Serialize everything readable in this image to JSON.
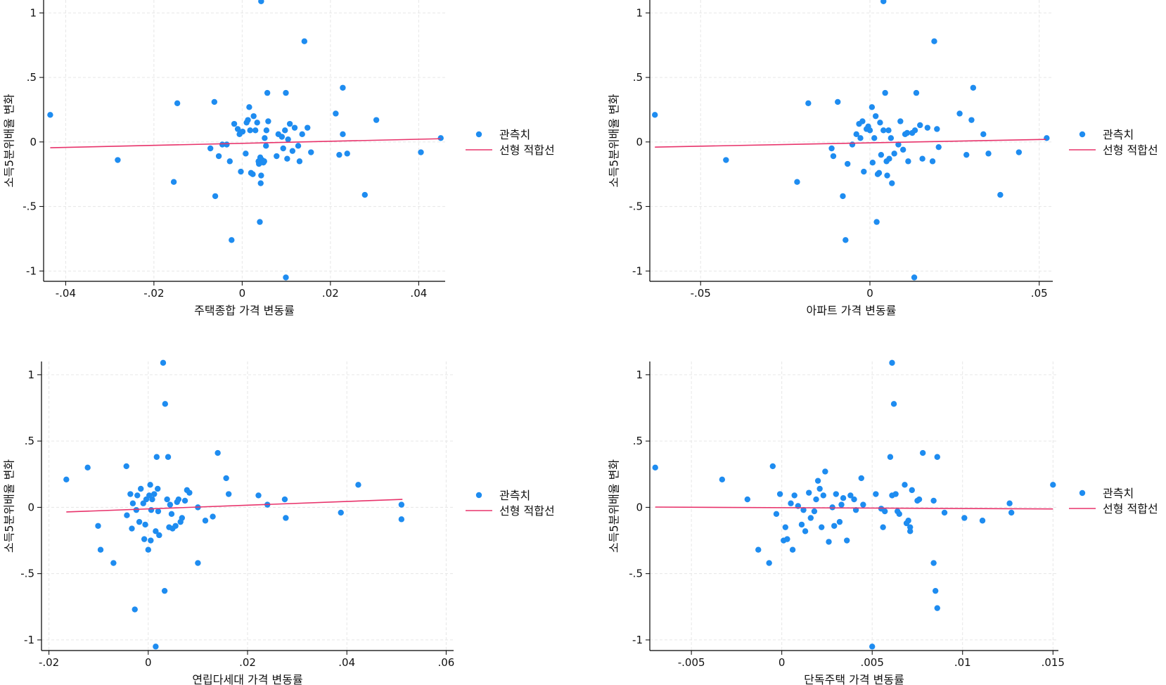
{
  "style": {
    "point_color": "#1E8CF0",
    "line_color": "#E8336B",
    "grid_color": "#E6E6E6"
  },
  "chart_data": [
    {
      "type": "scatter",
      "xlabel": "주택종합 가격 변동률",
      "ylabel": "소득5분위배율 변화",
      "xlim": [
        -0.045,
        0.046
      ],
      "ylim": [
        -1.08,
        1.1
      ],
      "xticks": [
        -0.04,
        -0.02,
        0,
        0.02,
        0.04
      ],
      "xtick_labels": [
        "-.04",
        "-.02",
        "0",
        ".02",
        ".04"
      ],
      "yticks": [
        -1,
        -0.5,
        0,
        0.5,
        1
      ],
      "ytick_labels": [
        "-1",
        "-.5",
        "0",
        ".5",
        "1"
      ],
      "legend": {
        "position": "right",
        "entries": [
          "관측치",
          "선형 적합선"
        ]
      },
      "grid": true,
      "fit_line": [
        [
          -0.0435,
          -0.045
        ],
        [
          0.045,
          0.025
        ]
      ],
      "points": [
        [
          -0.0435,
          0.21
        ],
        [
          -0.0282,
          -0.14
        ],
        [
          -0.0155,
          -0.31
        ],
        [
          -0.0147,
          0.3
        ],
        [
          -0.0063,
          0.31
        ],
        [
          -0.0061,
          -0.42
        ],
        [
          -0.0053,
          -0.11
        ],
        [
          -0.0072,
          -0.05
        ],
        [
          -0.0045,
          -0.02
        ],
        [
          -0.0035,
          -0.02
        ],
        [
          -0.0028,
          -0.15
        ],
        [
          -0.0024,
          -0.76
        ],
        [
          -0.0018,
          0.14
        ],
        [
          -0.001,
          0.1
        ],
        [
          -0.0006,
          0.06
        ],
        [
          -0.0003,
          -0.23
        ],
        [
          0.0001,
          0.08
        ],
        [
          0.0008,
          -0.09
        ],
        [
          0.001,
          0.15
        ],
        [
          0.0013,
          0.17
        ],
        [
          0.0016,
          0.27
        ],
        [
          0.0018,
          0.09
        ],
        [
          0.002,
          -0.24
        ],
        [
          0.0024,
          -0.25
        ],
        [
          0.0026,
          0.2
        ],
        [
          0.003,
          0.09
        ],
        [
          0.0034,
          0.15
        ],
        [
          0.0037,
          -0.15
        ],
        [
          0.0038,
          -0.17
        ],
        [
          0.004,
          -0.62
        ],
        [
          0.0041,
          -0.12
        ],
        [
          0.0042,
          -0.32
        ],
        [
          0.0043,
          -0.26
        ],
        [
          0.0045,
          -0.14
        ],
        [
          0.0048,
          -0.16
        ],
        [
          0.005,
          -0.15
        ],
        [
          0.0051,
          0.03
        ],
        [
          0.0054,
          -0.03
        ],
        [
          0.0055,
          0.09
        ],
        [
          0.0057,
          0.38
        ],
        [
          0.0059,
          0.16
        ],
        [
          0.0043,
          1.09
        ],
        [
          0.0078,
          -0.11
        ],
        [
          0.0082,
          0.06
        ],
        [
          0.009,
          0.04
        ],
        [
          0.0093,
          -0.05
        ],
        [
          0.0097,
          0.09
        ],
        [
          0.0099,
          0.38
        ],
        [
          0.0102,
          -0.13
        ],
        [
          0.0104,
          0.02
        ],
        [
          0.0099,
          -1.05
        ],
        [
          0.0108,
          0.14
        ],
        [
          0.0114,
          -0.07
        ],
        [
          0.0119,
          0.11
        ],
        [
          0.0127,
          -0.03
        ],
        [
          0.013,
          -0.15
        ],
        [
          0.0136,
          0.06
        ],
        [
          0.0141,
          0.78
        ],
        [
          0.0148,
          0.11
        ],
        [
          0.0156,
          -0.08
        ],
        [
          0.0212,
          0.22
        ],
        [
          0.022,
          -0.1
        ],
        [
          0.0228,
          0.06
        ],
        [
          0.0238,
          -0.09
        ],
        [
          0.0228,
          0.42
        ],
        [
          0.0278,
          -0.41
        ],
        [
          0.0304,
          0.17
        ],
        [
          0.0405,
          -0.08
        ],
        [
          0.045,
          0.03
        ]
      ]
    },
    {
      "type": "scatter",
      "xlabel": "아파트 가격 변동률",
      "ylabel": "소득5분위배율 변화",
      "xlim": [
        -0.065,
        0.054
      ],
      "ylim": [
        -1.08,
        1.1
      ],
      "xticks": [
        -0.05,
        0,
        0.05
      ],
      "xtick_labels": [
        "-.05",
        "0",
        ".05"
      ],
      "yticks": [
        -1,
        -0.5,
        0,
        0.5,
        1
      ],
      "ytick_labels": [
        "-1",
        "-.5",
        "0",
        ".5",
        "1"
      ],
      "legend": {
        "position": "right",
        "entries": [
          "관측치",
          "선형 적합선"
        ]
      },
      "grid": true,
      "fit_line": [
        [
          -0.0635,
          -0.04
        ],
        [
          0.052,
          0.02
        ]
      ],
      "points": [
        [
          -0.0635,
          0.21
        ],
        [
          -0.0425,
          -0.14
        ],
        [
          -0.0215,
          -0.31
        ],
        [
          -0.0182,
          0.3
        ],
        [
          -0.0113,
          -0.05
        ],
        [
          -0.0108,
          -0.11
        ],
        [
          -0.0095,
          0.31
        ],
        [
          -0.008,
          -0.42
        ],
        [
          -0.0072,
          -0.76
        ],
        [
          -0.0066,
          -0.17
        ],
        [
          -0.0052,
          -0.02
        ],
        [
          -0.004,
          0.06
        ],
        [
          -0.0032,
          0.14
        ],
        [
          -0.0028,
          0.03
        ],
        [
          -0.0022,
          0.16
        ],
        [
          -0.0018,
          -0.23
        ],
        [
          -0.001,
          0.1
        ],
        [
          -0.0005,
          0.12
        ],
        [
          0.0,
          0.09
        ],
        [
          0.0006,
          0.27
        ],
        [
          0.0008,
          -0.16
        ],
        [
          0.0013,
          0.03
        ],
        [
          0.0017,
          0.2
        ],
        [
          0.002,
          -0.62
        ],
        [
          0.0023,
          -0.25
        ],
        [
          0.0027,
          -0.24
        ],
        [
          0.003,
          0.15
        ],
        [
          0.0033,
          -0.1
        ],
        [
          0.004,
          0.09
        ],
        [
          0.0045,
          0.38
        ],
        [
          0.0049,
          -0.15
        ],
        [
          0.0051,
          -0.26
        ],
        [
          0.0055,
          0.09
        ],
        [
          0.0057,
          -0.13
        ],
        [
          0.0062,
          0.03
        ],
        [
          0.0065,
          -0.32
        ],
        [
          0.0072,
          -0.09
        ],
        [
          0.004,
          1.09
        ],
        [
          0.0084,
          -0.02
        ],
        [
          0.009,
          0.16
        ],
        [
          0.0098,
          -0.06
        ],
        [
          0.0104,
          0.06
        ],
        [
          0.011,
          0.07
        ],
        [
          0.0113,
          -0.15
        ],
        [
          0.0125,
          0.07
        ],
        [
          0.0133,
          0.09
        ],
        [
          0.0137,
          0.38
        ],
        [
          0.0131,
          -1.05
        ],
        [
          0.0148,
          0.13
        ],
        [
          0.0155,
          -0.13
        ],
        [
          0.017,
          0.11
        ],
        [
          0.0185,
          -0.15
        ],
        [
          0.019,
          0.78
        ],
        [
          0.0198,
          0.1
        ],
        [
          0.0203,
          -0.04
        ],
        [
          0.0265,
          0.22
        ],
        [
          0.0285,
          -0.1
        ],
        [
          0.03,
          0.17
        ],
        [
          0.0305,
          0.42
        ],
        [
          0.0335,
          0.06
        ],
        [
          0.035,
          -0.09
        ],
        [
          0.0385,
          -0.41
        ],
        [
          0.044,
          -0.08
        ],
        [
          0.0522,
          0.03
        ]
      ]
    },
    {
      "type": "scatter",
      "xlabel": "연립다세대 가격 변동률",
      "ylabel": "소득5분위배율 변화",
      "xlim": [
        -0.0215,
        0.0615
      ],
      "ylim": [
        -1.08,
        1.1
      ],
      "xticks": [
        -0.02,
        0,
        0.02,
        0.04,
        0.06
      ],
      "xtick_labels": [
        "-.02",
        "0",
        ".02",
        ".04",
        ".06"
      ],
      "yticks": [
        -1,
        -0.5,
        0,
        0.5,
        1
      ],
      "ytick_labels": [
        "-1",
        "-.5",
        "0",
        ".5",
        "1"
      ],
      "legend": {
        "position": "right",
        "entries": [
          "관측치",
          "선형 적합선"
        ]
      },
      "grid": true,
      "fit_line": [
        [
          -0.0165,
          -0.035
        ],
        [
          0.0512,
          0.06
        ]
      ],
      "points": [
        [
          -0.0165,
          0.21
        ],
        [
          -0.0122,
          0.3
        ],
        [
          -0.0101,
          -0.14
        ],
        [
          -0.0096,
          -0.32
        ],
        [
          -0.007,
          -0.42
        ],
        [
          -0.0044,
          0.31
        ],
        [
          -0.0043,
          -0.06
        ],
        [
          -0.0036,
          0.1
        ],
        [
          -0.0033,
          -0.16
        ],
        [
          -0.0031,
          0.03
        ],
        [
          -0.0027,
          -0.77
        ],
        [
          -0.0024,
          -0.02
        ],
        [
          -0.0022,
          0.09
        ],
        [
          -0.0018,
          -0.11
        ],
        [
          -0.0015,
          0.14
        ],
        [
          -0.001,
          0.03
        ],
        [
          -0.0008,
          -0.24
        ],
        [
          -0.0006,
          -0.13
        ],
        [
          -0.0004,
          0.06
        ],
        [
          0.0,
          -0.32
        ],
        [
          0.0002,
          0.09
        ],
        [
          0.0004,
          0.17
        ],
        [
          0.0005,
          -0.25
        ],
        [
          0.0006,
          -0.02
        ],
        [
          0.0008,
          0.06
        ],
        [
          0.0012,
          0.1
        ],
        [
          0.0015,
          -0.18
        ],
        [
          0.0017,
          0.38
        ],
        [
          0.0019,
          0.14
        ],
        [
          0.002,
          -0.03
        ],
        [
          0.0022,
          -0.21
        ],
        [
          0.003,
          1.09
        ],
        [
          0.0033,
          -0.63
        ],
        [
          0.0034,
          0.78
        ],
        [
          0.0038,
          0.06
        ],
        [
          0.004,
          0.38
        ],
        [
          0.0042,
          -0.15
        ],
        [
          0.0044,
          0.02
        ],
        [
          0.0047,
          -0.05
        ],
        [
          0.0049,
          -0.16
        ],
        [
          0.0055,
          -0.14
        ],
        [
          0.0058,
          0.04
        ],
        [
          0.0061,
          0.06
        ],
        [
          0.0065,
          -0.11
        ],
        [
          0.0068,
          -0.08
        ],
        [
          0.0074,
          0.05
        ],
        [
          0.0078,
          0.13
        ],
        [
          0.0083,
          0.11
        ],
        [
          0.01,
          -0.42
        ],
        [
          0.01,
          0.0
        ],
        [
          0.0115,
          -0.1
        ],
        [
          0.013,
          -0.07
        ],
        [
          0.014,
          0.41
        ],
        [
          0.0157,
          0.22
        ],
        [
          0.0162,
          0.1
        ],
        [
          0.0015,
          -1.05
        ],
        [
          0.0222,
          0.09
        ],
        [
          0.024,
          0.02
        ],
        [
          0.0275,
          0.06
        ],
        [
          0.0277,
          -0.08
        ],
        [
          0.0388,
          -0.04
        ],
        [
          0.0423,
          0.17
        ],
        [
          0.051,
          0.02
        ],
        [
          0.051,
          -0.09
        ]
      ]
    },
    {
      "type": "scatter",
      "xlabel": "단독주택 가격 변동률",
      "ylabel": "소득5분위배율 변화",
      "xlim": [
        -0.0073,
        0.0153
      ],
      "ylim": [
        -1.08,
        1.1
      ],
      "xticks": [
        -0.005,
        0,
        0.005,
        0.01,
        0.015
      ],
      "xtick_labels": [
        "-.005",
        "0",
        ".005",
        ".01",
        ".015"
      ],
      "yticks": [
        -1,
        -0.5,
        0,
        0.5,
        1
      ],
      "ytick_labels": [
        "-1",
        "-.5",
        "0",
        ".5",
        "1"
      ],
      "legend": {
        "position": "right",
        "entries": [
          "관측치",
          "선형 적합선"
        ]
      },
      "grid": true,
      "fit_line": [
        [
          -0.007,
          0.002
        ],
        [
          0.015,
          -0.012
        ]
      ],
      "points": [
        [
          -0.007,
          0.3
        ],
        [
          -0.0033,
          0.21
        ],
        [
          -0.0019,
          0.06
        ],
        [
          -0.0013,
          -0.32
        ],
        [
          -0.0007,
          -0.42
        ],
        [
          -0.0005,
          0.31
        ],
        [
          -0.0003,
          -0.05
        ],
        [
          -0.0001,
          0.1
        ],
        [
          0.0001,
          -0.25
        ],
        [
          0.0002,
          -0.15
        ],
        [
          0.0003,
          -0.24
        ],
        [
          0.0005,
          0.03
        ],
        [
          0.0006,
          -0.32
        ],
        [
          0.0007,
          0.09
        ],
        [
          0.0009,
          0.01
        ],
        [
          0.0011,
          -0.13
        ],
        [
          0.0012,
          -0.02
        ],
        [
          0.0013,
          -0.18
        ],
        [
          0.0015,
          0.11
        ],
        [
          0.0016,
          -0.08
        ],
        [
          0.0018,
          -0.03
        ],
        [
          0.0019,
          0.06
        ],
        [
          0.002,
          0.2
        ],
        [
          0.0021,
          0.14
        ],
        [
          0.0022,
          -0.15
        ],
        [
          0.0023,
          0.09
        ],
        [
          0.0024,
          0.27
        ],
        [
          0.0026,
          -0.26
        ],
        [
          0.0028,
          0.0
        ],
        [
          0.0029,
          -0.14
        ],
        [
          0.003,
          0.1
        ],
        [
          0.0032,
          -0.11
        ],
        [
          0.0033,
          0.02
        ],
        [
          0.0034,
          0.07
        ],
        [
          0.0036,
          -0.25
        ],
        [
          0.0038,
          0.09
        ],
        [
          0.004,
          0.06
        ],
        [
          0.0041,
          -0.02
        ],
        [
          0.0044,
          0.22
        ],
        [
          0.0045,
          0.02
        ],
        [
          0.005,
          -1.05
        ],
        [
          0.0052,
          0.1
        ],
        [
          0.0055,
          -0.01
        ],
        [
          0.0056,
          -0.15
        ],
        [
          0.0057,
          -0.03
        ],
        [
          0.006,
          0.38
        ],
        [
          0.0061,
          1.09
        ],
        [
          0.0061,
          0.09
        ],
        [
          0.0062,
          0.78
        ],
        [
          0.0063,
          0.1
        ],
        [
          0.0064,
          -0.03
        ],
        [
          0.0065,
          -0.05
        ],
        [
          0.0068,
          0.17
        ],
        [
          0.0069,
          -0.12
        ],
        [
          0.007,
          -0.1
        ],
        [
          0.0071,
          -0.15
        ],
        [
          0.0071,
          -0.18
        ],
        [
          0.0072,
          0.13
        ],
        [
          0.0075,
          0.05
        ],
        [
          0.0076,
          0.06
        ],
        [
          0.0078,
          0.41
        ],
        [
          0.0084,
          0.05
        ],
        [
          0.0084,
          -0.42
        ],
        [
          0.0085,
          -0.63
        ],
        [
          0.0086,
          -0.76
        ],
        [
          0.0086,
          0.38
        ],
        [
          0.009,
          -0.04
        ],
        [
          0.0101,
          -0.08
        ],
        [
          0.0111,
          -0.1
        ],
        [
          0.0126,
          0.03
        ],
        [
          0.0127,
          -0.04
        ],
        [
          0.015,
          0.17
        ]
      ]
    }
  ]
}
